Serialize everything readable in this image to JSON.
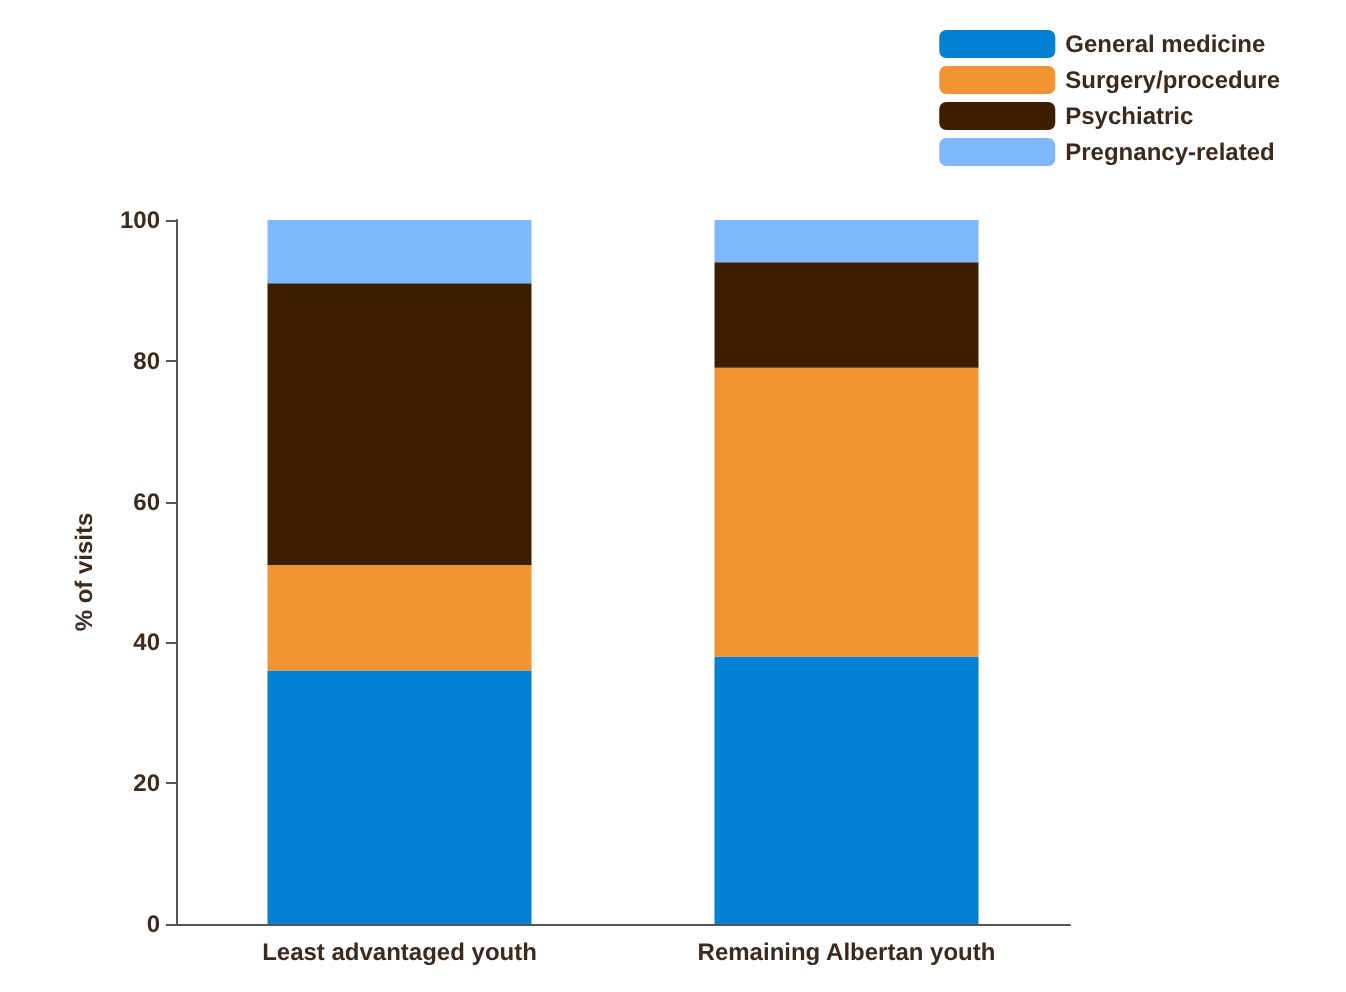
{
  "chart_data": {
    "type": "bar",
    "stacked": true,
    "ylabel": "% of visits",
    "categories": [
      "Least advantaged youth",
      "Remaining Albertan youth"
    ],
    "series": [
      {
        "name": "General medicine",
        "color": "#0080d0",
        "values": [
          36,
          38
        ]
      },
      {
        "name": "Surgery/procedure",
        "color": "#f09433",
        "values": [
          15,
          41
        ]
      },
      {
        "name": "Psychiatric",
        "color": "#3c1e00",
        "values": [
          40,
          15
        ]
      },
      {
        "name": "Pregnancy-related",
        "color": "#80b8ff",
        "values": [
          9,
          6
        ]
      }
    ],
    "ylim": [
      0,
      100
    ],
    "yticks": [
      0,
      20,
      40,
      60,
      80,
      100
    ],
    "grid": false,
    "legend": "top right"
  }
}
